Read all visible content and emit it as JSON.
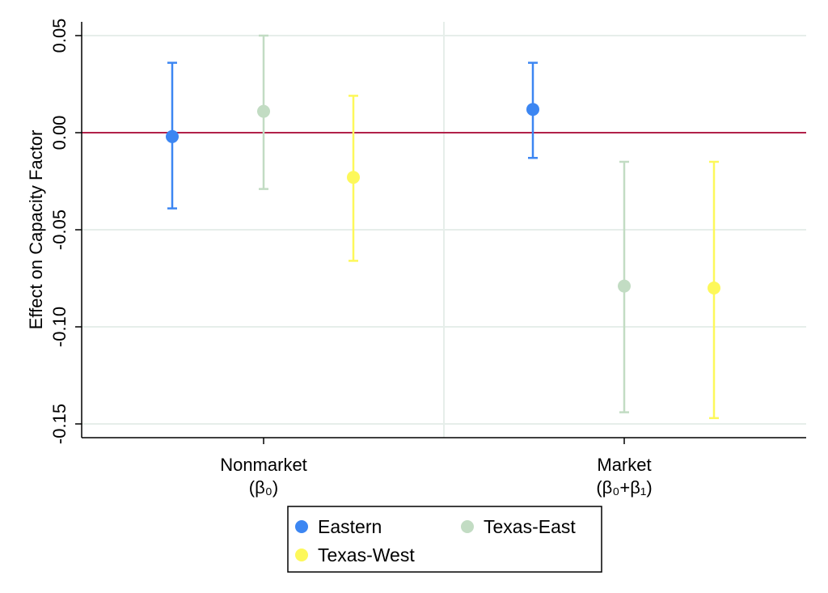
{
  "chart_data": {
    "type": "scatter",
    "subtype": "coefficient plot with confidence intervals",
    "title": "",
    "ylabel": "Effect on Capacity Factor",
    "xlabel": "",
    "ylim": [
      -0.157,
      0.05
    ],
    "yticks": [
      0.05,
      0.0,
      -0.05,
      -0.1,
      -0.15
    ],
    "ytick_labels": [
      "0.05",
      "0.00",
      "-0.05",
      "-0.10",
      "-0.15"
    ],
    "reference_line": 0,
    "grid": true,
    "categories": [
      {
        "name": "Nonmarket",
        "sub": "(β₀)"
      },
      {
        "name": "Market",
        "sub": "(β₀+β₁)"
      }
    ],
    "series": [
      {
        "name": "Eastern",
        "color": "#3c86f2",
        "points": [
          {
            "estimate": -0.002,
            "lower": -0.039,
            "upper": 0.036
          },
          {
            "estimate": 0.012,
            "lower": -0.013,
            "upper": 0.036
          }
        ]
      },
      {
        "name": "Texas-East",
        "color": "#c2dcc3",
        "points": [
          {
            "estimate": 0.011,
            "lower": -0.029,
            "upper": 0.05
          },
          {
            "estimate": -0.079,
            "lower": -0.144,
            "upper": -0.015
          }
        ]
      },
      {
        "name": "Texas-West",
        "color": "#fdf85a",
        "points": [
          {
            "estimate": -0.023,
            "lower": -0.066,
            "upper": 0.019
          },
          {
            "estimate": -0.08,
            "lower": -0.147,
            "upper": -0.015
          }
        ]
      }
    ],
    "legend": {
      "position": "bottom",
      "entries": [
        "Eastern",
        "Texas-East",
        "Texas-West"
      ]
    }
  }
}
